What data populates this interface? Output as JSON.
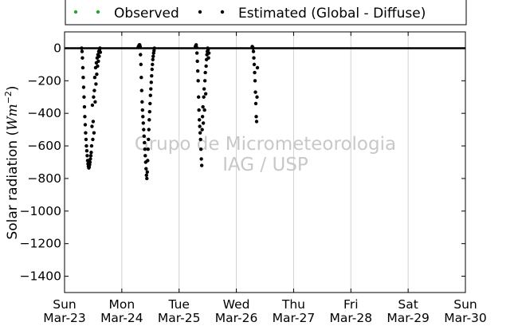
{
  "chart_data": {
    "type": "scatter",
    "ylabel": "Solar radiation (Wm⁻²)",
    "ylim": [
      -1500,
      100
    ],
    "yticks": [
      0,
      -200,
      -400,
      -600,
      -800,
      -1000,
      -1200,
      -1400
    ],
    "xlim": [
      "2014-03-23 00:00",
      "2014-03-30 00:00"
    ],
    "xticks": [
      {
        "day": "Sun",
        "date": "Mar-23"
      },
      {
        "day": "Mon",
        "date": "Mar-24"
      },
      {
        "day": "Tue",
        "date": "Mar-25"
      },
      {
        "day": "Wed",
        "date": "Mar-26"
      },
      {
        "day": "Thu",
        "date": "Mar-27"
      },
      {
        "day": "Fri",
        "date": "Mar-28"
      },
      {
        "day": "Sat",
        "date": "Mar-29"
      },
      {
        "day": "Sun",
        "date": "Mar-30"
      }
    ],
    "grid": "vertical",
    "zero_line": true,
    "legend": {
      "placement": "top",
      "entries": [
        {
          "name": "Observed",
          "color": "#2ca02c"
        },
        {
          "name": "Estimated (Global - Diffuse)",
          "color": "#000000"
        }
      ]
    },
    "series": [
      {
        "name": "Estimated (Global - Diffuse)",
        "color": "#000000",
        "points": [
          [
            "2014-03-23 07:10",
            0
          ],
          [
            "2014-03-23 07:20",
            -20
          ],
          [
            "2014-03-23 07:30",
            -60
          ],
          [
            "2014-03-23 07:40",
            -120
          ],
          [
            "2014-03-23 07:50",
            -180
          ],
          [
            "2014-03-23 08:00",
            -240
          ],
          [
            "2014-03-23 08:10",
            -300
          ],
          [
            "2014-03-23 08:20",
            -360
          ],
          [
            "2014-03-23 08:30",
            -420
          ],
          [
            "2014-03-23 08:40",
            -470
          ],
          [
            "2014-03-23 08:50",
            -520
          ],
          [
            "2014-03-23 09:00",
            -560
          ],
          [
            "2014-03-23 09:10",
            -600
          ],
          [
            "2014-03-23 09:20",
            -630
          ],
          [
            "2014-03-23 09:30",
            -660
          ],
          [
            "2014-03-23 09:40",
            -690
          ],
          [
            "2014-03-23 09:50",
            -710
          ],
          [
            "2014-03-23 10:00",
            -725
          ],
          [
            "2014-03-23 10:10",
            -735
          ],
          [
            "2014-03-23 10:20",
            -730
          ],
          [
            "2014-03-23 10:30",
            -715
          ],
          [
            "2014-03-23 10:40",
            -700
          ],
          [
            "2014-03-23 10:50",
            -680
          ],
          [
            "2014-03-23 11:00",
            -660
          ],
          [
            "2014-03-23 11:10",
            -640
          ],
          [
            "2014-03-23 11:20",
            -600
          ],
          [
            "2014-03-23 11:30",
            -480
          ],
          [
            "2014-03-23 11:40",
            -350
          ],
          [
            "2014-03-23 11:50",
            -560
          ],
          [
            "2014-03-23 12:00",
            -450
          ],
          [
            "2014-03-23 12:10",
            -300
          ],
          [
            "2014-03-23 12:20",
            -520
          ],
          [
            "2014-03-23 12:30",
            -260
          ],
          [
            "2014-03-23 12:40",
            -180
          ],
          [
            "2014-03-23 12:50",
            -330
          ],
          [
            "2014-03-23 13:00",
            -120
          ],
          [
            "2014-03-23 13:10",
            -220
          ],
          [
            "2014-03-23 13:20",
            -90
          ],
          [
            "2014-03-23 13:30",
            -160
          ],
          [
            "2014-03-23 13:40",
            -60
          ],
          [
            "2014-03-23 13:50",
            -110
          ],
          [
            "2014-03-23 14:00",
            -40
          ],
          [
            "2014-03-23 14:10",
            -80
          ],
          [
            "2014-03-23 14:20",
            -20
          ],
          [
            "2014-03-23 14:30",
            -50
          ],
          [
            "2014-03-23 14:40",
            -10
          ],
          [
            "2014-03-23 14:50",
            0
          ],
          [
            "2014-03-23 15:00",
            -25
          ],
          [
            "2014-03-24 06:50",
            5
          ],
          [
            "2014-03-24 07:00",
            10
          ],
          [
            "2014-03-24 07:10",
            15
          ],
          [
            "2014-03-24 07:20",
            20
          ],
          [
            "2014-03-24 07:30",
            20
          ],
          [
            "2014-03-24 07:40",
            10
          ],
          [
            "2014-03-24 07:50",
            -40
          ],
          [
            "2014-03-24 08:00",
            -100
          ],
          [
            "2014-03-24 08:10",
            -180
          ],
          [
            "2014-03-24 08:20",
            -260
          ],
          [
            "2014-03-24 08:30",
            -330
          ],
          [
            "2014-03-24 08:40",
            -380
          ],
          [
            "2014-03-24 08:50",
            -420
          ],
          [
            "2014-03-24 09:00",
            -460
          ],
          [
            "2014-03-24 09:10",
            -500
          ],
          [
            "2014-03-24 09:20",
            -540
          ],
          [
            "2014-03-24 09:30",
            -580
          ],
          [
            "2014-03-24 09:40",
            -620
          ],
          [
            "2014-03-24 09:50",
            -660
          ],
          [
            "2014-03-24 10:00",
            -700
          ],
          [
            "2014-03-24 10:10",
            -740
          ],
          [
            "2014-03-24 10:20",
            -780
          ],
          [
            "2014-03-24 10:30",
            -800
          ],
          [
            "2014-03-24 10:40",
            -760
          ],
          [
            "2014-03-24 10:50",
            -690
          ],
          [
            "2014-03-24 11:00",
            -620
          ],
          [
            "2014-03-24 11:10",
            -560
          ],
          [
            "2014-03-24 11:20",
            -500
          ],
          [
            "2014-03-24 11:30",
            -440
          ],
          [
            "2014-03-24 11:40",
            -390
          ],
          [
            "2014-03-24 11:50",
            -340
          ],
          [
            "2014-03-24 12:00",
            -290
          ],
          [
            "2014-03-24 12:10",
            -250
          ],
          [
            "2014-03-24 12:20",
            -210
          ],
          [
            "2014-03-24 12:30",
            -170
          ],
          [
            "2014-03-24 12:40",
            -130
          ],
          [
            "2014-03-24 12:50",
            -100
          ],
          [
            "2014-03-24 13:00",
            -70
          ],
          [
            "2014-03-24 13:10",
            -50
          ],
          [
            "2014-03-24 13:20",
            -30
          ],
          [
            "2014-03-24 13:30",
            -15
          ],
          [
            "2014-03-24 13:40",
            0
          ],
          [
            "2014-03-25 06:50",
            10
          ],
          [
            "2014-03-25 07:00",
            15
          ],
          [
            "2014-03-25 07:10",
            20
          ],
          [
            "2014-03-25 07:20",
            5
          ],
          [
            "2014-03-25 07:30",
            -30
          ],
          [
            "2014-03-25 07:40",
            -80
          ],
          [
            "2014-03-25 07:50",
            -140
          ],
          [
            "2014-03-25 08:00",
            -200
          ],
          [
            "2014-03-25 08:10",
            -300
          ],
          [
            "2014-03-25 08:20",
            -380
          ],
          [
            "2014-03-25 08:30",
            -440
          ],
          [
            "2014-03-25 08:40",
            -480
          ],
          [
            "2014-03-25 08:50",
            -520
          ],
          [
            "2014-03-25 09:00",
            -560
          ],
          [
            "2014-03-25 09:10",
            -620
          ],
          [
            "2014-03-25 09:20",
            -680
          ],
          [
            "2014-03-25 09:30",
            -720
          ],
          [
            "2014-03-25 09:40",
            -500
          ],
          [
            "2014-03-25 09:50",
            -420
          ],
          [
            "2014-03-25 10:00",
            -360
          ],
          [
            "2014-03-25 10:10",
            -460
          ],
          [
            "2014-03-25 10:20",
            -300
          ],
          [
            "2014-03-25 10:30",
            -250
          ],
          [
            "2014-03-25 10:40",
            -380
          ],
          [
            "2014-03-25 10:50",
            -200
          ],
          [
            "2014-03-25 11:00",
            -150
          ],
          [
            "2014-03-25 11:10",
            -280
          ],
          [
            "2014-03-25 11:20",
            -110
          ],
          [
            "2014-03-25 11:30",
            -70
          ],
          [
            "2014-03-25 11:40",
            -40
          ],
          [
            "2014-03-25 11:50",
            -20
          ],
          [
            "2014-03-25 12:00",
            0
          ],
          [
            "2014-03-25 12:10",
            -10
          ],
          [
            "2014-03-25 12:20",
            -60
          ],
          [
            "2014-03-25 12:30",
            -30
          ],
          [
            "2014-03-26 06:40",
            10
          ],
          [
            "2014-03-26 06:50",
            5
          ],
          [
            "2014-03-26 07:00",
            0
          ],
          [
            "2014-03-26 07:10",
            -20
          ],
          [
            "2014-03-26 07:20",
            -60
          ],
          [
            "2014-03-26 07:30",
            -100
          ],
          [
            "2014-03-26 07:40",
            -150
          ],
          [
            "2014-03-26 07:50",
            -200
          ],
          [
            "2014-03-26 08:00",
            -270
          ],
          [
            "2014-03-26 08:10",
            -340
          ],
          [
            "2014-03-26 08:20",
            -420
          ],
          [
            "2014-03-26 08:30",
            -450
          ],
          [
            "2014-03-26 08:40",
            -300
          ],
          [
            "2014-03-26 08:50",
            -120
          ]
        ]
      }
    ]
  },
  "watermark": {
    "line1": "Grupo de Micrometeorologia",
    "line2": "IAG / USP"
  }
}
